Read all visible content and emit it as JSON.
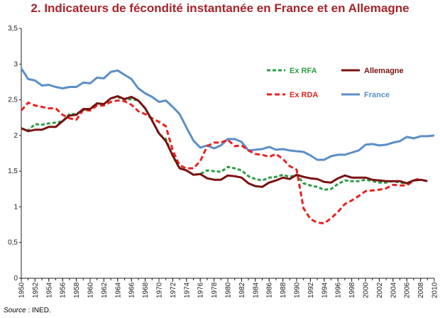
{
  "chart_data": {
    "type": "line",
    "title": "2. Indicateurs de fécondité instantanée en France et en Allemagne",
    "xlabel": "",
    "ylabel": "",
    "xlim": [
      1950,
      2010
    ],
    "ylim": [
      0,
      3.5
    ],
    "yticks": [
      "0",
      "0,5",
      "1",
      "1,5",
      "2",
      "2,5",
      "3",
      "3,5"
    ],
    "xticks": [
      1950,
      1952,
      1954,
      1956,
      1958,
      1960,
      1962,
      1964,
      1966,
      1968,
      1970,
      1972,
      1974,
      1976,
      1978,
      1980,
      1982,
      1984,
      1986,
      1988,
      1990,
      1992,
      1994,
      1996,
      1998,
      2000,
      2002,
      2004,
      2006,
      2008,
      2010
    ],
    "grid": false,
    "legend": "top-right",
    "series": [
      {
        "name": "France",
        "color": "#5b8fc7",
        "dash": "solid",
        "x": [
          1950,
          1951,
          1952,
          1953,
          1954,
          1955,
          1956,
          1957,
          1958,
          1959,
          1960,
          1961,
          1962,
          1963,
          1964,
          1965,
          1966,
          1967,
          1968,
          1969,
          1970,
          1971,
          1972,
          1973,
          1974,
          1975,
          1976,
          1977,
          1978,
          1979,
          1980,
          1981,
          1982,
          1983,
          1984,
          1985,
          1986,
          1987,
          1988,
          1989,
          1990,
          1991,
          1992,
          1993,
          1994,
          1995,
          1996,
          1997,
          1998,
          1999,
          2000,
          2001,
          2002,
          2003,
          2004,
          2005,
          2006,
          2007,
          2008,
          2009,
          2010
        ],
        "values": [
          2.94,
          2.79,
          2.77,
          2.7,
          2.71,
          2.68,
          2.66,
          2.68,
          2.68,
          2.74,
          2.73,
          2.81,
          2.8,
          2.89,
          2.91,
          2.85,
          2.79,
          2.66,
          2.59,
          2.54,
          2.47,
          2.49,
          2.4,
          2.3,
          2.11,
          1.93,
          1.83,
          1.86,
          1.82,
          1.86,
          1.95,
          1.95,
          1.91,
          1.79,
          1.8,
          1.81,
          1.84,
          1.8,
          1.81,
          1.79,
          1.78,
          1.77,
          1.72,
          1.66,
          1.66,
          1.71,
          1.73,
          1.73,
          1.76,
          1.79,
          1.87,
          1.88,
          1.86,
          1.87,
          1.9,
          1.92,
          1.98,
          1.96,
          1.99,
          1.99,
          2.0
        ]
      },
      {
        "name": "Ex RFA",
        "color": "#2e9e44",
        "dash": "5,3",
        "x": [
          1950,
          1951,
          1952,
          1953,
          1954,
          1955,
          1956,
          1957,
          1958,
          1959,
          1960,
          1961,
          1962,
          1963,
          1964,
          1965,
          1966,
          1967,
          1968,
          1969,
          1970,
          1971,
          1972,
          1973,
          1974,
          1975,
          1976,
          1977,
          1978,
          1979,
          1980,
          1981,
          1982,
          1983,
          1984,
          1985,
          1986,
          1987,
          1988,
          1989,
          1990,
          1991,
          1992,
          1993,
          1994,
          1995,
          1996,
          1997,
          1998,
          1999,
          2000,
          2001,
          2002,
          2003,
          2004,
          2005,
          2006,
          2007,
          2008,
          2009
        ],
        "values": [
          2.1,
          2.07,
          2.16,
          2.15,
          2.17,
          2.18,
          2.2,
          2.3,
          2.3,
          2.36,
          2.37,
          2.45,
          2.44,
          2.52,
          2.54,
          2.5,
          2.51,
          2.49,
          2.38,
          2.21,
          2.02,
          1.95,
          1.71,
          1.54,
          1.51,
          1.45,
          1.46,
          1.51,
          1.5,
          1.49,
          1.56,
          1.54,
          1.51,
          1.43,
          1.39,
          1.37,
          1.41,
          1.42,
          1.45,
          1.42,
          1.45,
          1.33,
          1.3,
          1.28,
          1.24,
          1.25,
          1.32,
          1.37,
          1.36,
          1.36,
          1.38,
          1.36,
          1.34,
          1.34,
          1.36,
          1.34,
          1.33,
          1.37,
          1.38,
          1.36
        ]
      },
      {
        "name": "Ex RDA",
        "color": "#e8221f",
        "dash": "7,4",
        "x": [
          1950,
          1951,
          1952,
          1953,
          1954,
          1955,
          1956,
          1957,
          1958,
          1959,
          1960,
          1961,
          1962,
          1963,
          1964,
          1965,
          1966,
          1967,
          1968,
          1969,
          1970,
          1971,
          1972,
          1973,
          1974,
          1975,
          1976,
          1977,
          1978,
          1979,
          1980,
          1981,
          1982,
          1983,
          1984,
          1985,
          1986,
          1987,
          1988,
          1989,
          1990,
          1991,
          1992,
          1993,
          1994,
          1995,
          1996,
          1997,
          1998,
          1999,
          2000,
          2001,
          2002,
          2003,
          2004,
          2005,
          2006,
          2007,
          2008
        ],
        "values": [
          2.35,
          2.46,
          2.42,
          2.4,
          2.38,
          2.38,
          2.29,
          2.24,
          2.22,
          2.36,
          2.35,
          2.42,
          2.42,
          2.47,
          2.49,
          2.48,
          2.43,
          2.34,
          2.3,
          2.24,
          2.19,
          2.13,
          1.79,
          1.58,
          1.54,
          1.54,
          1.64,
          1.85,
          1.9,
          1.9,
          1.94,
          1.85,
          1.86,
          1.79,
          1.74,
          1.73,
          1.7,
          1.74,
          1.67,
          1.57,
          1.52,
          0.98,
          0.83,
          0.78,
          0.77,
          0.84,
          0.93,
          1.04,
          1.09,
          1.15,
          1.22,
          1.23,
          1.24,
          1.26,
          1.31,
          1.3,
          1.3,
          1.37,
          1.4
        ]
      },
      {
        "name": "Allemagne",
        "color": "#7a1212",
        "dash": "solid",
        "x": [
          1950,
          1951,
          1952,
          1953,
          1954,
          1955,
          1956,
          1957,
          1958,
          1959,
          1960,
          1961,
          1962,
          1963,
          1964,
          1965,
          1966,
          1967,
          1968,
          1969,
          1970,
          1971,
          1972,
          1973,
          1974,
          1975,
          1976,
          1977,
          1978,
          1979,
          1980,
          1981,
          1982,
          1983,
          1984,
          1985,
          1986,
          1987,
          1988,
          1989,
          1990,
          1991,
          1992,
          1993,
          1994,
          1995,
          1996,
          1997,
          1998,
          1999,
          2000,
          2001,
          2002,
          2003,
          2004,
          2005,
          2006,
          2007,
          2008,
          2009
        ],
        "values": [
          2.1,
          2.06,
          2.08,
          2.08,
          2.12,
          2.12,
          2.2,
          2.28,
          2.29,
          2.37,
          2.37,
          2.45,
          2.44,
          2.52,
          2.55,
          2.51,
          2.54,
          2.49,
          2.38,
          2.21,
          2.03,
          1.92,
          1.72,
          1.54,
          1.51,
          1.45,
          1.46,
          1.4,
          1.38,
          1.38,
          1.44,
          1.43,
          1.41,
          1.33,
          1.29,
          1.28,
          1.34,
          1.37,
          1.41,
          1.39,
          1.45,
          1.42,
          1.4,
          1.39,
          1.35,
          1.34,
          1.4,
          1.44,
          1.41,
          1.41,
          1.41,
          1.38,
          1.37,
          1.36,
          1.36,
          1.36,
          1.33,
          1.37,
          1.38,
          1.36
        ]
      }
    ],
    "source_label": "Source",
    "source_text": " : INED."
  }
}
